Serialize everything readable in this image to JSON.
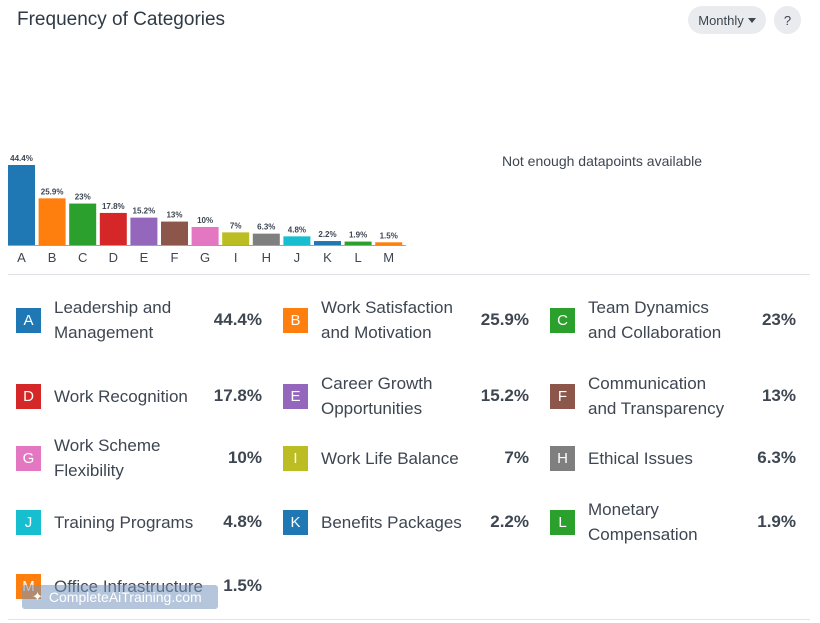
{
  "header": {
    "title": "Frequency of Categories",
    "period_label": "Monthly",
    "help_label": "?"
  },
  "side_message": "Not enough datapoints available",
  "watermark": "CompleteAiTraining.com",
  "chart_data": {
    "type": "bar",
    "categories": [
      "A",
      "B",
      "C",
      "D",
      "E",
      "F",
      "G",
      "I",
      "H",
      "J",
      "K",
      "L",
      "M"
    ],
    "values": [
      44.4,
      25.9,
      23,
      17.8,
      15.2,
      13,
      10,
      7,
      6.3,
      4.8,
      2.2,
      1.9,
      1.5
    ],
    "data_labels": [
      "44.4%",
      "25.9%",
      "23%",
      "17.8%",
      "15.2%",
      "13%",
      "10%",
      "7%",
      "6.3%",
      "4.8%",
      "2.2%",
      "1.9%",
      "1.5%"
    ],
    "colors": [
      "#1f77b4",
      "#ff7f0e",
      "#2ca02c",
      "#d62728",
      "#9467bd",
      "#8c564b",
      "#e377c2",
      "#bcbd22",
      "#7f7f7f",
      "#17becf",
      "#1f77b4",
      "#2ca02c",
      "#ff7f0e"
    ],
    "ylim": [
      0,
      44.4
    ],
    "grid": false,
    "legend": "bottom"
  },
  "legend": [
    {
      "key": "A",
      "label": "Leadership and Management",
      "pct": "44.4%",
      "color": "#1f77b4"
    },
    {
      "key": "B",
      "label": "Work Satisfaction and Motivation",
      "pct": "25.9%",
      "color": "#ff7f0e"
    },
    {
      "key": "C",
      "label": "Team Dynamics and Collaboration",
      "pct": "23%",
      "color": "#2ca02c"
    },
    {
      "key": "D",
      "label": "Work Recognition",
      "pct": "17.8%",
      "color": "#d62728"
    },
    {
      "key": "E",
      "label": "Career Growth Opportunities",
      "pct": "15.2%",
      "color": "#9467bd"
    },
    {
      "key": "F",
      "label": "Communication and Transparency",
      "pct": "13%",
      "color": "#8c564b"
    },
    {
      "key": "G",
      "label": "Work Scheme Flexibility",
      "pct": "10%",
      "color": "#e377c2"
    },
    {
      "key": "I",
      "label": "Work Life Balance",
      "pct": "7%",
      "color": "#bcbd22"
    },
    {
      "key": "H",
      "label": "Ethical Issues",
      "pct": "6.3%",
      "color": "#7f7f7f"
    },
    {
      "key": "J",
      "label": "Training Programs",
      "pct": "4.8%",
      "color": "#17becf"
    },
    {
      "key": "K",
      "label": "Benefits Packages",
      "pct": "2.2%",
      "color": "#1f77b4"
    },
    {
      "key": "L",
      "label": "Monetary Compensation",
      "pct": "1.9%",
      "color": "#2ca02c"
    },
    {
      "key": "M",
      "label": "Office Infrastructure",
      "pct": "1.5%",
      "color": "#ff7f0e"
    }
  ]
}
